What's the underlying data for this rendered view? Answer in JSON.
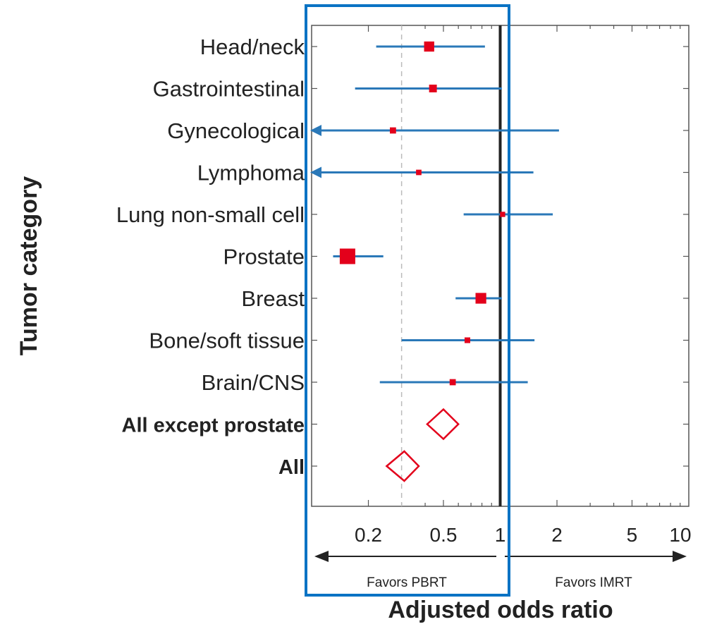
{
  "chart_data": {
    "type": "forest",
    "title": "",
    "xlabel": "Adjusted odds ratio",
    "ylabel": "Tumor category",
    "xscale": "log",
    "xlim": [
      0.1,
      10
    ],
    "xticks": [
      0.2,
      0.5,
      1,
      2,
      5,
      10
    ],
    "xtick_labels": [
      "0.2",
      "0.5",
      "1",
      "2",
      "5",
      "10"
    ],
    "reference_line": 1,
    "dashed_line": 0.3,
    "direction_labels": {
      "left": "Favors PBRT",
      "right": "Favors IMRT"
    },
    "highlight_box": "Favors PBRT region",
    "rows": [
      {
        "label": "Head/neck",
        "estimate": 0.42,
        "ci": [
          0.22,
          0.83
        ],
        "marker": "square",
        "weight": 0.55,
        "bold": false,
        "arrow_left": false
      },
      {
        "label": "Gastrointestinal",
        "estimate": 0.44,
        "ci": [
          0.17,
          1.02
        ],
        "marker": "square",
        "weight": 0.35,
        "bold": false,
        "arrow_left": false
      },
      {
        "label": "Gynecological",
        "estimate": 0.27,
        "ci": [
          0.1,
          2.05
        ],
        "marker": "square",
        "weight": 0.22,
        "bold": false,
        "arrow_left": true
      },
      {
        "label": "Lymphoma",
        "estimate": 0.37,
        "ci": [
          0.1,
          1.5
        ],
        "marker": "square",
        "weight": 0.16,
        "bold": false,
        "arrow_left": true
      },
      {
        "label": "Lung non-small cell",
        "estimate": 1.03,
        "ci": [
          0.64,
          1.9
        ],
        "marker": "square",
        "weight": 0.14,
        "bold": false,
        "arrow_left": false
      },
      {
        "label": "Prostate",
        "estimate": 0.155,
        "ci": [
          0.13,
          0.24
        ],
        "marker": "square",
        "weight": 1.0,
        "bold": false,
        "arrow_left": false
      },
      {
        "label": "Breast",
        "estimate": 0.79,
        "ci": [
          0.58,
          1.02
        ],
        "marker": "square",
        "weight": 0.6,
        "bold": false,
        "arrow_left": false
      },
      {
        "label": "Bone/soft tissue",
        "estimate": 0.67,
        "ci": [
          0.3,
          1.52
        ],
        "marker": "square",
        "weight": 0.18,
        "bold": false,
        "arrow_left": false
      },
      {
        "label": "Brain/CNS",
        "estimate": 0.56,
        "ci": [
          0.23,
          1.4
        ],
        "marker": "square",
        "weight": 0.22,
        "bold": false,
        "arrow_left": false
      },
      {
        "label": "All except prostate",
        "estimate": 0.5,
        "ci": [
          0.41,
          0.6
        ],
        "marker": "diamond",
        "weight": 1.0,
        "bold": true,
        "arrow_left": false
      },
      {
        "label": "All",
        "estimate": 0.31,
        "ci": [
          0.25,
          0.37
        ],
        "marker": "diamond",
        "weight": 1.0,
        "bold": true,
        "arrow_left": false
      }
    ],
    "colors": {
      "ci_line": "#2a78b8",
      "marker": "#e3001b",
      "reference": "#222222",
      "axis": "#555555",
      "highlight": "#0a73c4"
    }
  }
}
